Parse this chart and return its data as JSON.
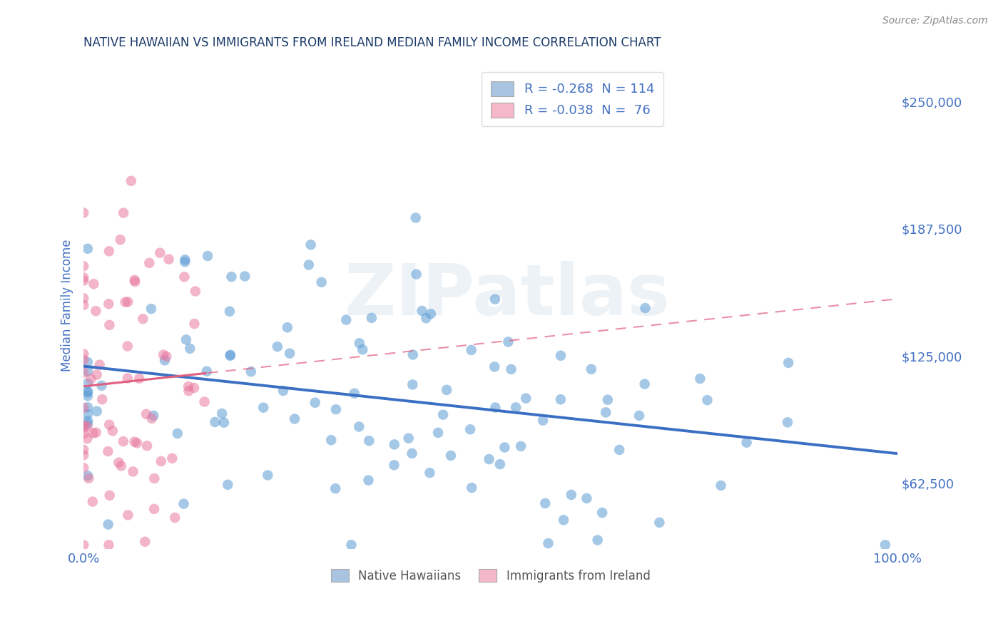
{
  "title": "NATIVE HAWAIIAN VS IMMIGRANTS FROM IRELAND MEDIAN FAMILY INCOME CORRELATION CHART",
  "source": "Source: ZipAtlas.com",
  "ylabel": "Median Family Income",
  "xlim": [
    0,
    100
  ],
  "ylim": [
    30000,
    270000
  ],
  "yticks": [
    62500,
    125000,
    187500,
    250000
  ],
  "ytick_labels": [
    "$62,500",
    "$125,000",
    "$187,500",
    "$250,000"
  ],
  "xtick_labels": [
    "0.0%",
    "100.0%"
  ],
  "legend_label1": "R = -0.268  N = 114",
  "legend_label2": "R = -0.038  N =  76",
  "legend_color1": "#a8c4e0",
  "legend_color2": "#f4b8c8",
  "series1_color": "#5b9bd5",
  "series2_color": "#e878a0",
  "trend1_color": "#3a6fc4",
  "trend2_color": "#e06080",
  "series1_N": 114,
  "series2_N": 76,
  "watermark": "ZIPatlas",
  "grid_color": "#cccccc",
  "bg_color": "#ffffff",
  "title_color": "#1a3a6a",
  "axis_label_color": "#4472c4",
  "tick_label_color": "#4472c4",
  "source_color": "#888888",
  "bottom_legend_color": "#555555",
  "seed1": 7,
  "seed2": 3,
  "s1_x_mean": 35,
  "s1_x_std": 25,
  "s1_y_mean": 107000,
  "s1_y_std": 38000,
  "s2_x_mean": 4,
  "s2_x_std": 5,
  "s2_y_mean": 118000,
  "s2_y_std": 52000,
  "s1_R": -0.268,
  "s2_R": -0.038
}
